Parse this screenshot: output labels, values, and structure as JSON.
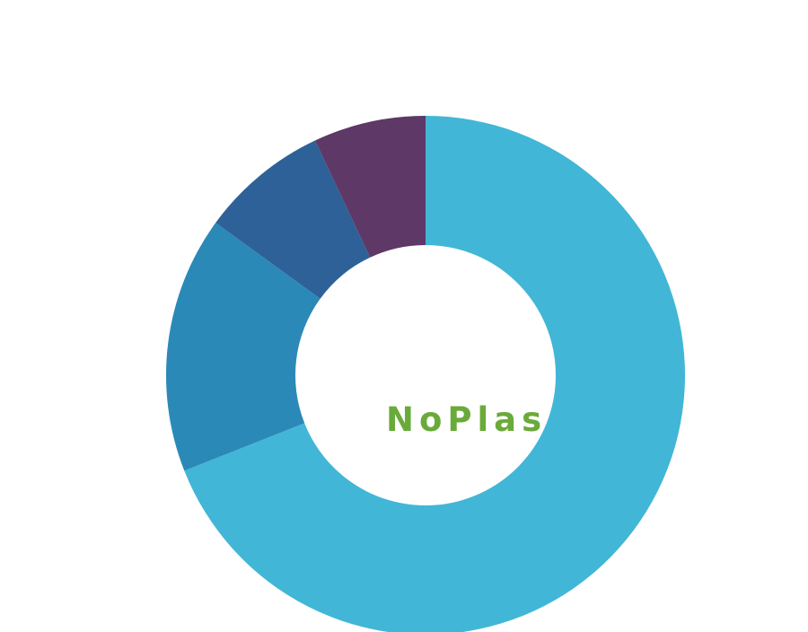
{
  "chart_data": {
    "type": "pie",
    "variant": "donut",
    "center_label": "NoPlas",
    "colors": {
      "center_label": "#6aaa3a",
      "background": "#ffffff"
    },
    "slices": [
      {
        "value": 69,
        "color": "#42b6d6"
      },
      {
        "value": 16,
        "color": "#2b89b7"
      },
      {
        "value": 8,
        "color": "#2d6198"
      },
      {
        "value": 7,
        "color": "#5e3866"
      }
    ],
    "start": "top",
    "direction": "clockwise",
    "legend": "none"
  }
}
